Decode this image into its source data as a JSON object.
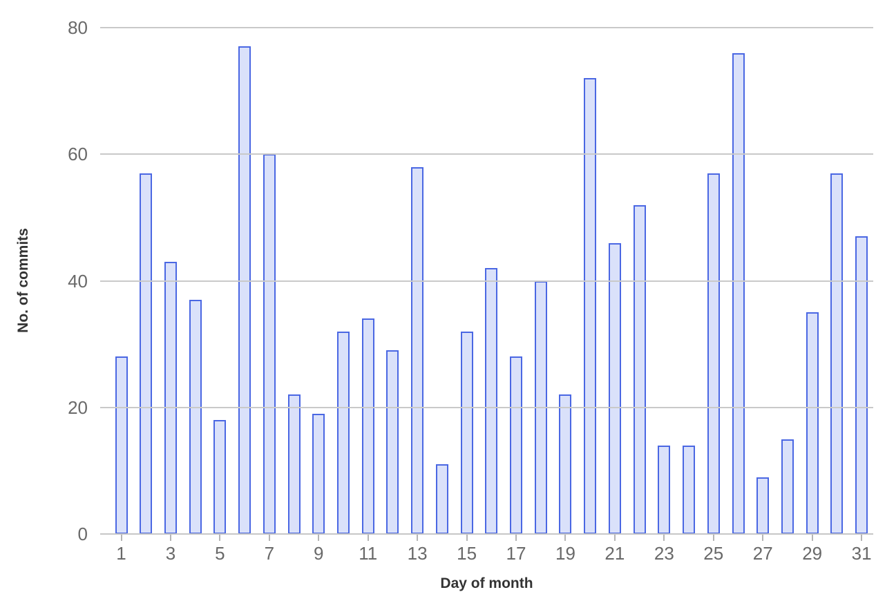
{
  "chart_data": {
    "type": "bar",
    "title": "",
    "xlabel": "Day of month",
    "ylabel": "No. of commits",
    "categories": [
      1,
      2,
      3,
      4,
      5,
      6,
      7,
      8,
      9,
      10,
      11,
      12,
      13,
      14,
      15,
      16,
      17,
      18,
      19,
      20,
      21,
      22,
      23,
      24,
      25,
      26,
      27,
      28,
      29,
      30,
      31
    ],
    "values": [
      28,
      57,
      43,
      37,
      18,
      77,
      60,
      22,
      19,
      32,
      34,
      29,
      58,
      11,
      32,
      42,
      28,
      40,
      22,
      72,
      46,
      52,
      14,
      14,
      57,
      76,
      9,
      15,
      35,
      57,
      47
    ],
    "ylim": [
      0,
      80
    ],
    "yticks": [
      0,
      20,
      40,
      60,
      80
    ],
    "xticks_shown": [
      1,
      3,
      5,
      7,
      9,
      11,
      13,
      15,
      17,
      19,
      21,
      23,
      25,
      27,
      29,
      31
    ],
    "grid": "horizontal",
    "legend": "none",
    "colors": {
      "bar_fill": "#dae1fa",
      "bar_border": "#4a67e3",
      "gridline": "#c9c9c9",
      "baseline": "#c6c6c6",
      "tick_mark": "#b5b5b5",
      "tick_label": "#696969",
      "axis_title": "#333333",
      "background": "#ffffff"
    }
  }
}
